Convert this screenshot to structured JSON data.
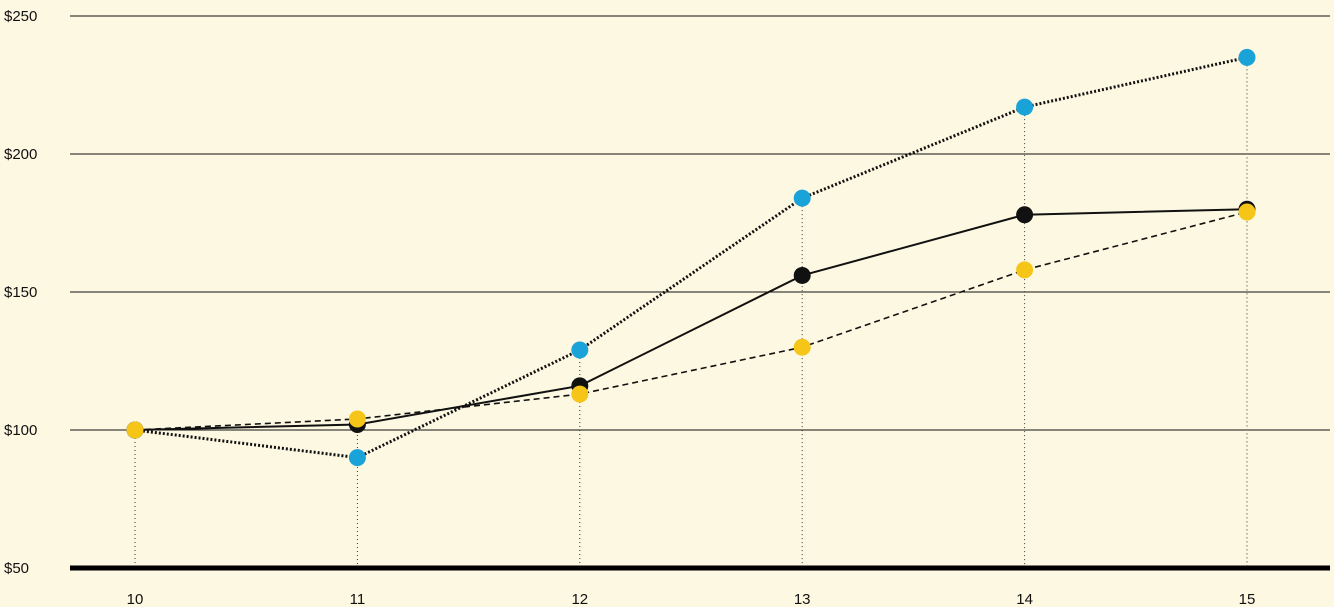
{
  "chart_data": {
    "type": "line",
    "title": "",
    "xlabel": "",
    "ylabel": "",
    "x": [
      "10",
      "11",
      "12",
      "13",
      "14",
      "15"
    ],
    "yticks": [
      {
        "value": 50,
        "label": "$50"
      },
      {
        "value": 100,
        "label": "$100"
      },
      {
        "value": 150,
        "label": "$150"
      },
      {
        "value": 200,
        "label": "$200"
      },
      {
        "value": 250,
        "label": "$250"
      }
    ],
    "ylim": [
      50,
      250
    ],
    "grid": true,
    "legend": "none",
    "series": [
      {
        "key": "black-solid",
        "color": "#111111",
        "line_style": "solid",
        "values": [
          100,
          102,
          116,
          156,
          178,
          180
        ]
      },
      {
        "key": "yellow-dashed",
        "color": "#f5c518",
        "line_style": "dashed",
        "values": [
          100,
          104,
          113,
          130,
          158,
          179
        ]
      },
      {
        "key": "blue-dotted",
        "color": "#1aa3d9",
        "line_style": "dotted",
        "values": [
          100,
          90,
          129,
          184,
          217,
          235
        ]
      }
    ],
    "colors": {
      "background": "#fdf8e1",
      "grid": "#111111",
      "axis": "#000000"
    }
  }
}
